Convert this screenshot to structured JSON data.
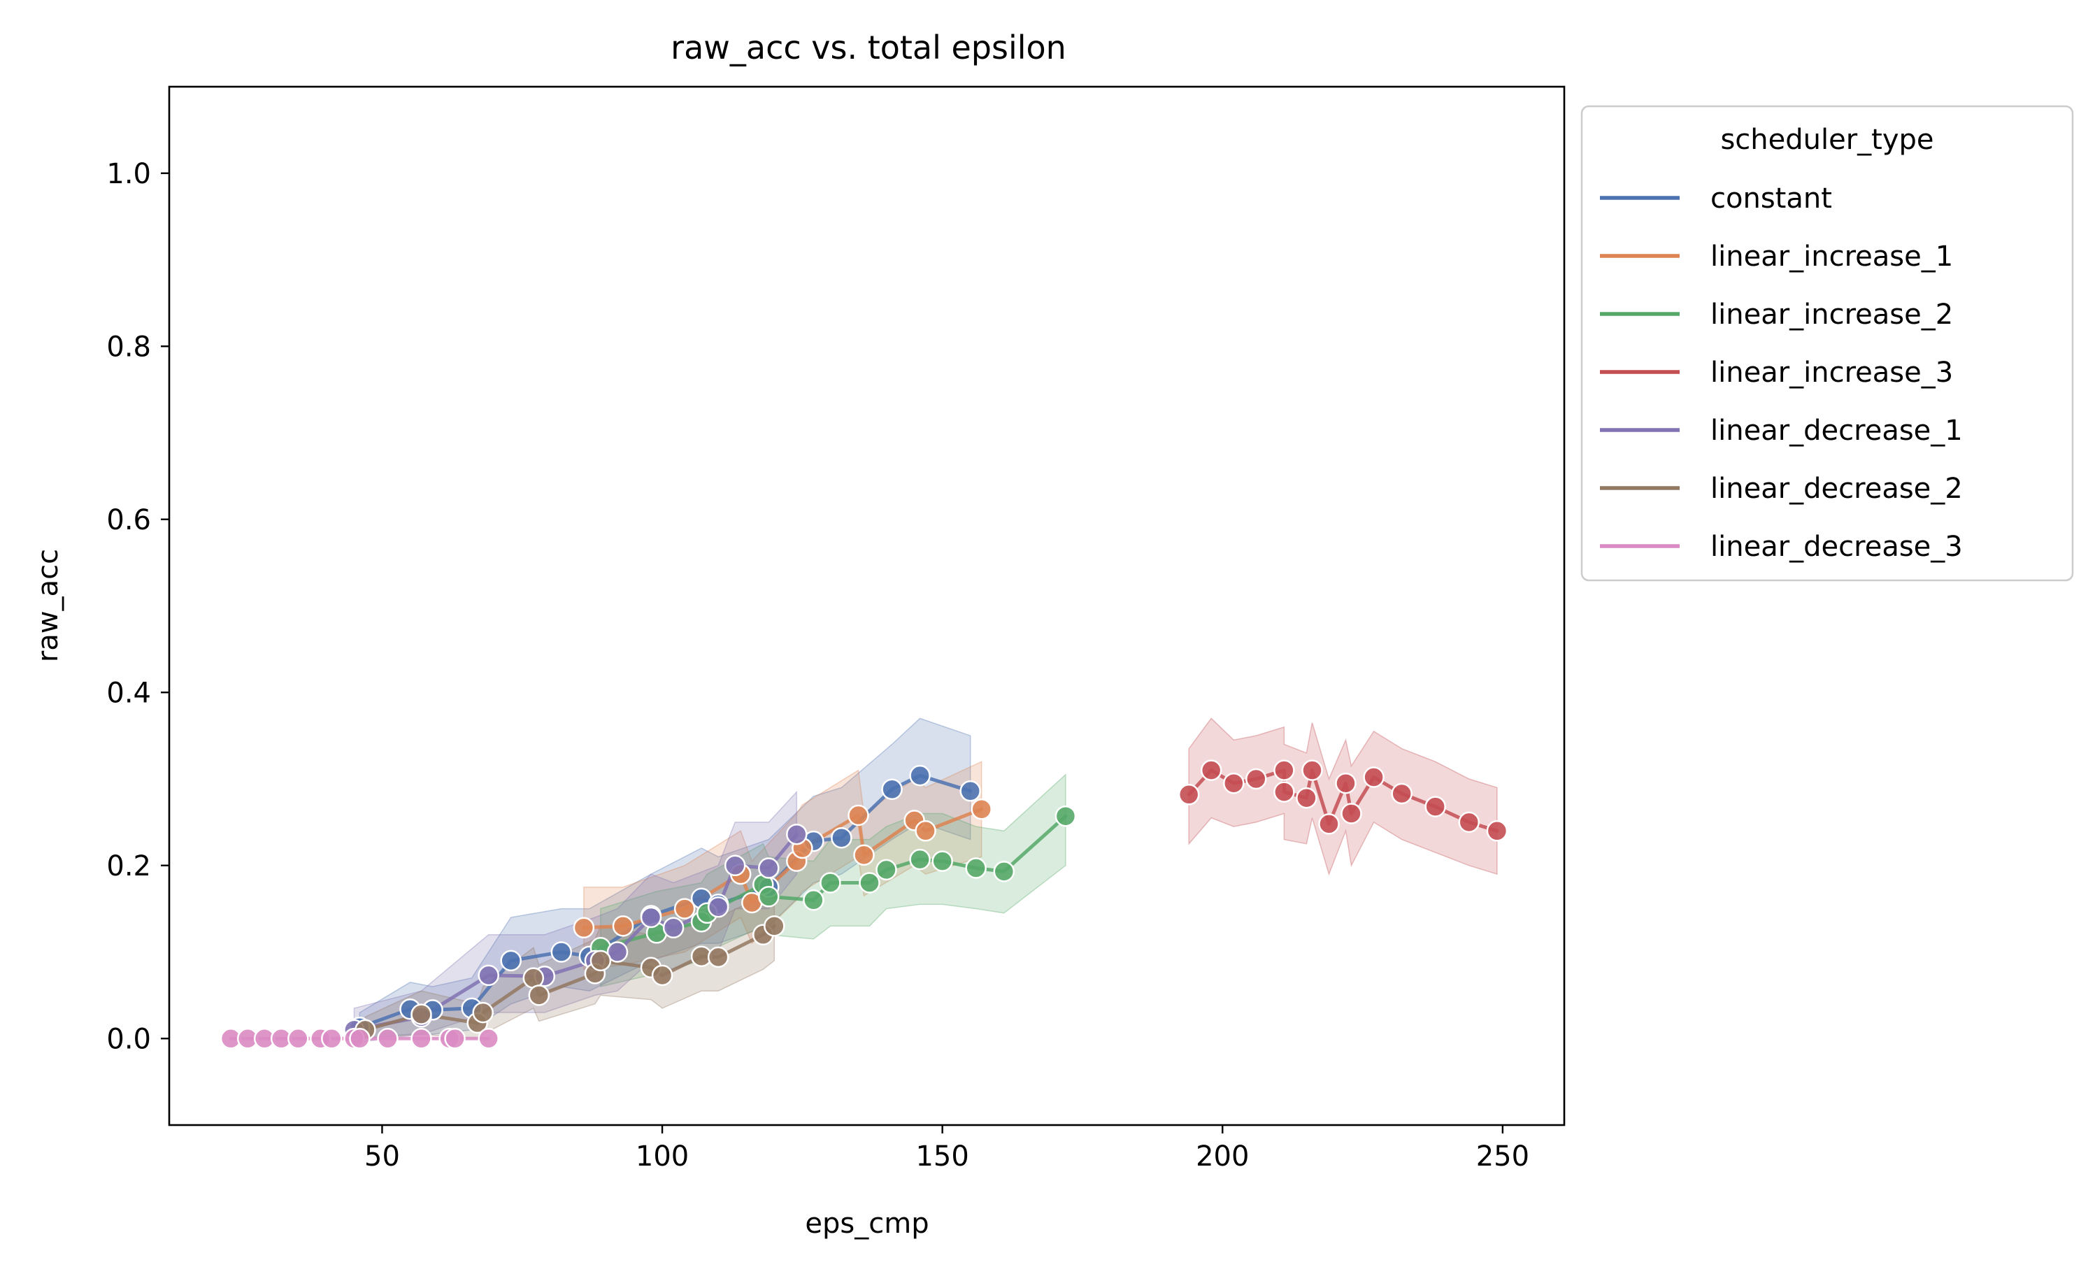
{
  "chart_data": {
    "type": "line",
    "title": "raw_acc vs. total epsilon",
    "xlabel": "eps_cmp",
    "ylabel": "raw_acc",
    "xlim": [
      12,
      261
    ],
    "ylim": [
      -0.1,
      1.1
    ],
    "xticks": [
      50,
      100,
      150,
      200,
      250
    ],
    "yticks": [
      0.0,
      0.2,
      0.4,
      0.6,
      0.8,
      1.0
    ],
    "xtick_labels": [
      "50",
      "100",
      "150",
      "200",
      "250"
    ],
    "ytick_labels": [
      "0.0",
      "0.2",
      "0.4",
      "0.6",
      "0.8",
      "1.0"
    ],
    "grid": false,
    "legend": {
      "title": "scheduler_type",
      "position": "outside-top-right"
    },
    "series": [
      {
        "name": "constant",
        "color": "#4c72b0",
        "x": [
          46,
          55,
          59,
          66,
          73,
          82,
          87,
          98,
          107,
          110,
          119,
          127,
          132,
          141,
          146,
          155
        ],
        "y": [
          0.013,
          0.034,
          0.033,
          0.035,
          0.09,
          0.1,
          0.095,
          0.142,
          0.162,
          0.155,
          0.175,
          0.228,
          0.232,
          0.288,
          0.304,
          0.286
        ],
        "lower": [
          0.0,
          0.005,
          0.005,
          0.01,
          0.04,
          0.06,
          0.055,
          0.09,
          0.11,
          0.11,
          0.13,
          0.18,
          0.19,
          0.23,
          0.25,
          0.23
        ],
        "upper": [
          0.03,
          0.065,
          0.06,
          0.07,
          0.14,
          0.15,
          0.15,
          0.19,
          0.22,
          0.21,
          0.23,
          0.28,
          0.29,
          0.34,
          0.37,
          0.35
        ]
      },
      {
        "name": "linear_increase_1",
        "color": "#dd8452",
        "x": [
          86,
          93,
          104,
          114,
          116,
          124,
          125,
          135,
          136,
          145,
          147,
          157
        ],
        "y": [
          0.128,
          0.13,
          0.15,
          0.19,
          0.157,
          0.205,
          0.22,
          0.258,
          0.212,
          0.252,
          0.24,
          0.265
        ],
        "lower": [
          0.08,
          0.085,
          0.1,
          0.14,
          0.11,
          0.16,
          0.17,
          0.21,
          0.165,
          0.2,
          0.19,
          0.21
        ],
        "upper": [
          0.175,
          0.175,
          0.2,
          0.24,
          0.205,
          0.26,
          0.27,
          0.31,
          0.26,
          0.3,
          0.29,
          0.32
        ]
      },
      {
        "name": "linear_increase_2",
        "color": "#55a868",
        "x": [
          89,
          99,
          107,
          108,
          118,
          119,
          127,
          130,
          137,
          140,
          146,
          150,
          156,
          161,
          172
        ],
        "y": [
          0.105,
          0.122,
          0.135,
          0.145,
          0.178,
          0.164,
          0.16,
          0.18,
          0.18,
          0.195,
          0.207,
          0.205,
          0.197,
          0.193,
          0.257
        ],
        "lower": [
          0.06,
          0.075,
          0.09,
          0.1,
          0.13,
          0.12,
          0.115,
          0.13,
          0.13,
          0.15,
          0.155,
          0.155,
          0.15,
          0.145,
          0.2
        ],
        "upper": [
          0.15,
          0.17,
          0.18,
          0.19,
          0.225,
          0.21,
          0.205,
          0.23,
          0.23,
          0.245,
          0.26,
          0.26,
          0.245,
          0.24,
          0.305
        ]
      },
      {
        "name": "linear_increase_3",
        "color": "#c44e52",
        "x": [
          194,
          198,
          202,
          206,
          211,
          211,
          215,
          216,
          219,
          222,
          223,
          227,
          232,
          238,
          244,
          249
        ],
        "y": [
          0.282,
          0.31,
          0.295,
          0.3,
          0.31,
          0.285,
          0.278,
          0.31,
          0.248,
          0.295,
          0.26,
          0.302,
          0.283,
          0.268,
          0.25,
          0.24
        ],
        "lower": [
          0.225,
          0.255,
          0.245,
          0.25,
          0.26,
          0.23,
          0.225,
          0.255,
          0.19,
          0.24,
          0.2,
          0.25,
          0.23,
          0.215,
          0.2,
          0.19
        ],
        "upper": [
          0.335,
          0.37,
          0.345,
          0.35,
          0.36,
          0.34,
          0.33,
          0.365,
          0.3,
          0.345,
          0.315,
          0.355,
          0.335,
          0.32,
          0.3,
          0.29
        ]
      },
      {
        "name": "linear_decrease_1",
        "color": "#8172b3",
        "x": [
          45,
          57,
          69,
          79,
          88,
          92,
          98,
          102,
          110,
          113,
          119,
          124
        ],
        "y": [
          0.01,
          0.025,
          0.073,
          0.072,
          0.09,
          0.1,
          0.14,
          0.128,
          0.152,
          0.2,
          0.197,
          0.236
        ],
        "lower": [
          -0.005,
          0.005,
          0.03,
          0.03,
          0.05,
          0.055,
          0.09,
          0.08,
          0.1,
          0.15,
          0.15,
          0.19
        ],
        "upper": [
          0.035,
          0.055,
          0.12,
          0.12,
          0.14,
          0.15,
          0.19,
          0.18,
          0.2,
          0.25,
          0.25,
          0.285
        ]
      },
      {
        "name": "linear_decrease_2",
        "color": "#937860",
        "x": [
          47,
          57,
          67,
          68,
          77,
          78,
          88,
          89,
          98,
          100,
          107,
          110,
          118,
          120
        ],
        "y": [
          0.01,
          0.028,
          0.018,
          0.03,
          0.07,
          0.05,
          0.075,
          0.09,
          0.082,
          0.073,
          0.095,
          0.094,
          0.12,
          0.13
        ],
        "lower": [
          0.0,
          0.005,
          0.0,
          0.005,
          0.035,
          0.02,
          0.04,
          0.05,
          0.045,
          0.035,
          0.055,
          0.055,
          0.08,
          0.09
        ],
        "upper": [
          0.025,
          0.055,
          0.04,
          0.06,
          0.105,
          0.085,
          0.115,
          0.13,
          0.12,
          0.115,
          0.14,
          0.14,
          0.165,
          0.175
        ]
      },
      {
        "name": "linear_decrease_3",
        "color": "#da8bc3",
        "x": [
          23,
          26,
          29,
          32,
          35,
          39,
          41,
          45,
          46,
          51,
          57,
          62,
          63,
          69
        ],
        "y": [
          0,
          0,
          0,
          0,
          0,
          0,
          0,
          0,
          0,
          0,
          0,
          0,
          0,
          0
        ],
        "lower": [
          0,
          0,
          0,
          0,
          0,
          0,
          0,
          0,
          0,
          0,
          0,
          0,
          0,
          0
        ],
        "upper": [
          0,
          0,
          0,
          0,
          0,
          0,
          0,
          0,
          0,
          0,
          0,
          0,
          0,
          0
        ]
      }
    ]
  }
}
